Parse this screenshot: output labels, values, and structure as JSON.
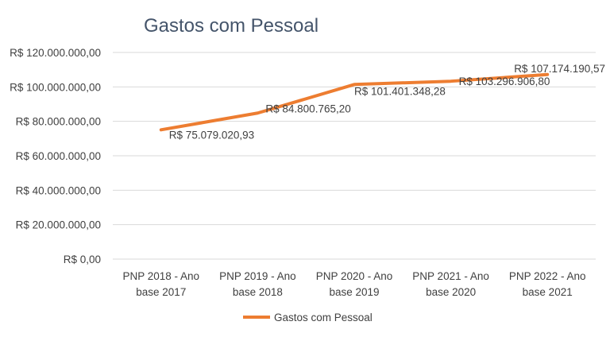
{
  "chart_data": {
    "type": "line",
    "title": "Gastos com Pessoal",
    "xlabel": "",
    "ylabel": "",
    "categories": [
      [
        "PNP 2018 - Ano",
        "base 2017"
      ],
      [
        "PNP 2019 - Ano",
        "base 2018"
      ],
      [
        "PNP 2020 - Ano",
        "base 2019"
      ],
      [
        "PNP 2021 - Ano",
        "base 2020"
      ],
      [
        "PNP 2022 - Ano",
        "base 2021"
      ]
    ],
    "series": [
      {
        "name": "Gastos com Pessoal",
        "color": "#ed7d31",
        "values": [
          75079020.93,
          84800765.2,
          101401348.28,
          103296906.8,
          107174190.57
        ],
        "labels": [
          "R$ 75.079.020,93",
          "R$ 84.800.765,20",
          "R$ 101.401.348,28",
          "R$ 103.296.906,80",
          "R$ 107.174.190,57"
        ]
      }
    ],
    "ylim": [
      0,
      120000000
    ],
    "yticks": [
      0,
      20000000,
      40000000,
      60000000,
      80000000,
      100000000,
      120000000
    ],
    "ytick_labels": [
      "R$ 0,00",
      "R$ 20.000.000,00",
      "R$ 40.000.000,00",
      "R$ 60.000.000,00",
      "R$ 80.000.000,00",
      "R$ 100.000.000,00",
      "R$ 120.000.000,00"
    ],
    "grid": true,
    "legend_position": "bottom"
  }
}
